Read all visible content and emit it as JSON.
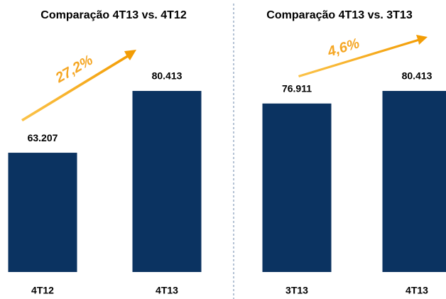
{
  "chart_data": [
    {
      "type": "bar",
      "title": "Comparação 4T13 vs. 4T12",
      "categories": [
        "4T12",
        "4T13"
      ],
      "values": [
        63207,
        80413
      ],
      "value_labels": [
        "63.207",
        "80.413"
      ],
      "annotation": "27,2%",
      "color": "#0b3361",
      "ylim": [
        30000,
        82000
      ]
    },
    {
      "type": "bar",
      "title": "Comparação 4T13 vs. 3T13",
      "categories": [
        "3T13",
        "4T13"
      ],
      "values": [
        76911,
        80413
      ],
      "value_labels": [
        "76.911",
        "80.413"
      ],
      "annotation": "4,6%",
      "color": "#0b3361",
      "ylim": [
        30000,
        82000
      ]
    }
  ]
}
